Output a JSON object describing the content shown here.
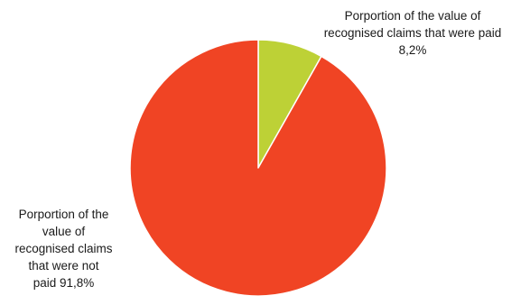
{
  "chart_data": {
    "type": "pie",
    "categories": [
      "Porportion of the value of recognised claims that were paid",
      "Porportion of the value of recognised claims that were not paid"
    ],
    "values": [
      8.2,
      91.8
    ],
    "unit": "%",
    "colors": [
      "#bdd136",
      "#f04424"
    ],
    "slice_labels": [
      "Porportion of the value of\nrecognised claims that were paid\n8,2%",
      "Porportion of the\nvalue of\nrecognised claims\nthat were not\npaid 91,8%"
    ],
    "start_angle": "12 o'clock",
    "direction": "clockwise",
    "legend": "none"
  }
}
